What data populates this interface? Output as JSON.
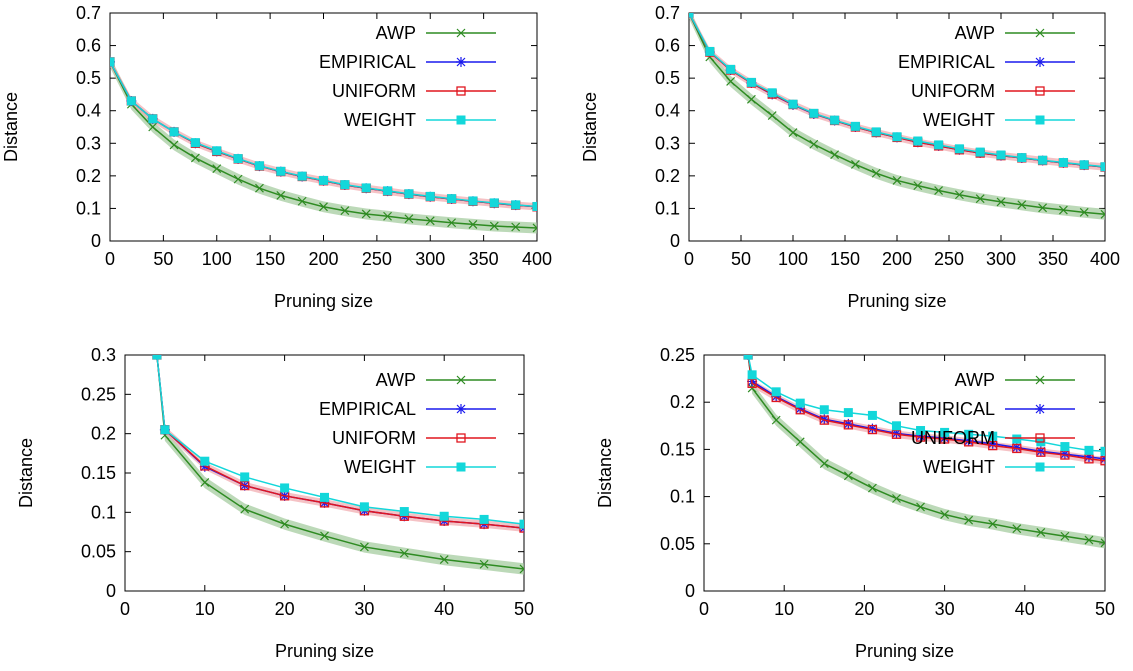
{
  "colors": {
    "AWP": "#2e8b22",
    "AWP_band": "#9fc99a",
    "EMPIRICAL": "#1a1aee",
    "UNIFORM": "#e0161f",
    "UNIFORM_band": "#f1a8ad",
    "WEIGHT": "#13d7da"
  },
  "chart_data": [
    {
      "type": "line",
      "xlabel": "Pruning size",
      "ylabel": "Distance",
      "xlim": [
        0,
        400
      ],
      "ylim": [
        0,
        0.7
      ],
      "xticks": [
        "0",
        "50",
        "100",
        "150",
        "200",
        "250",
        "300",
        "350",
        "400"
      ],
      "yticks": [
        "0",
        "0.1",
        "0.2",
        "0.3",
        "0.4",
        "0.5",
        "0.6",
        "0.7"
      ],
      "legend_position": "top-right",
      "x": [
        0,
        20,
        40,
        60,
        80,
        100,
        120,
        140,
        160,
        180,
        200,
        220,
        240,
        260,
        280,
        300,
        320,
        340,
        360,
        380,
        400
      ],
      "series": [
        {
          "name": "AWP",
          "marker": "x",
          "values": [
            0.55,
            0.42,
            0.35,
            0.295,
            0.255,
            0.222,
            0.19,
            0.162,
            0.14,
            0.122,
            0.105,
            0.093,
            0.083,
            0.076,
            0.068,
            0.062,
            0.056,
            0.051,
            0.046,
            0.043,
            0.04
          ]
        },
        {
          "name": "EMPIRICAL",
          "marker": "star",
          "values": [
            0.55,
            0.43,
            0.375,
            0.335,
            0.3,
            0.275,
            0.252,
            0.23,
            0.213,
            0.198,
            0.185,
            0.172,
            0.162,
            0.153,
            0.144,
            0.136,
            0.129,
            0.122,
            0.116,
            0.11,
            0.105
          ]
        },
        {
          "name": "UNIFORM",
          "marker": "open-square",
          "values": [
            0.55,
            0.43,
            0.375,
            0.335,
            0.3,
            0.275,
            0.252,
            0.23,
            0.213,
            0.198,
            0.185,
            0.172,
            0.162,
            0.153,
            0.144,
            0.136,
            0.129,
            0.122,
            0.116,
            0.11,
            0.105
          ]
        },
        {
          "name": "WEIGHT",
          "marker": "filled-square",
          "values": [
            0.55,
            0.43,
            0.375,
            0.335,
            0.302,
            0.277,
            0.253,
            0.231,
            0.214,
            0.199,
            0.186,
            0.173,
            0.163,
            0.154,
            0.145,
            0.137,
            0.13,
            0.123,
            0.117,
            0.111,
            0.106
          ]
        }
      ]
    },
    {
      "type": "line",
      "xlabel": "Pruning size",
      "ylabel": "Distance",
      "xlim": [
        0,
        400
      ],
      "ylim": [
        0,
        0.7
      ],
      "xticks": [
        "0",
        "50",
        "100",
        "150",
        "200",
        "250",
        "300",
        "350",
        "400"
      ],
      "yticks": [
        "0",
        "0.1",
        "0.2",
        "0.3",
        "0.4",
        "0.5",
        "0.6",
        "0.7"
      ],
      "legend_position": "top-right",
      "x": [
        0,
        20,
        40,
        60,
        80,
        100,
        120,
        140,
        160,
        180,
        200,
        220,
        240,
        260,
        280,
        300,
        320,
        340,
        360,
        380,
        400
      ],
      "series": [
        {
          "name": "AWP",
          "marker": "x",
          "values": [
            0.7,
            0.565,
            0.49,
            0.435,
            0.385,
            0.333,
            0.297,
            0.265,
            0.235,
            0.208,
            0.186,
            0.17,
            0.155,
            0.142,
            0.13,
            0.12,
            0.111,
            0.102,
            0.095,
            0.088,
            0.082
          ]
        },
        {
          "name": "EMPIRICAL",
          "marker": "star",
          "values": [
            0.7,
            0.58,
            0.525,
            0.485,
            0.45,
            0.418,
            0.39,
            0.37,
            0.35,
            0.333,
            0.318,
            0.303,
            0.292,
            0.28,
            0.27,
            0.262,
            0.255,
            0.247,
            0.24,
            0.233,
            0.227
          ]
        },
        {
          "name": "UNIFORM",
          "marker": "open-square",
          "values": [
            0.7,
            0.58,
            0.525,
            0.485,
            0.451,
            0.419,
            0.391,
            0.37,
            0.35,
            0.333,
            0.318,
            0.303,
            0.292,
            0.28,
            0.27,
            0.262,
            0.255,
            0.247,
            0.24,
            0.233,
            0.227
          ]
        },
        {
          "name": "WEIGHT",
          "marker": "filled-square",
          "values": [
            0.7,
            0.582,
            0.527,
            0.487,
            0.455,
            0.42,
            0.392,
            0.371,
            0.352,
            0.335,
            0.32,
            0.307,
            0.295,
            0.283,
            0.273,
            0.264,
            0.256,
            0.248,
            0.241,
            0.234,
            0.228
          ]
        }
      ]
    },
    {
      "type": "line",
      "xlabel": "Pruning size",
      "ylabel": "Distance",
      "xlim": [
        0,
        50
      ],
      "ylim": [
        0,
        0.3
      ],
      "xticks": [
        "0",
        "10",
        "20",
        "30",
        "40",
        "50"
      ],
      "yticks": [
        "0",
        "0.05",
        "0.1",
        "0.15",
        "0.2",
        "0.25",
        "0.3"
      ],
      "legend_position": "top-right",
      "x": [
        4,
        5,
        10,
        15,
        20,
        25,
        30,
        35,
        40,
        45,
        50
      ],
      "series": [
        {
          "name": "AWP",
          "marker": "x",
          "values": [
            0.3,
            0.198,
            0.138,
            0.104,
            0.085,
            0.07,
            0.056,
            0.048,
            0.04,
            0.034,
            0.028
          ]
        },
        {
          "name": "EMPIRICAL",
          "marker": "star",
          "values": [
            0.3,
            0.205,
            0.158,
            0.134,
            0.121,
            0.112,
            0.102,
            0.095,
            0.089,
            0.085,
            0.08
          ]
        },
        {
          "name": "UNIFORM",
          "marker": "open-square",
          "values": [
            0.3,
            0.205,
            0.159,
            0.134,
            0.121,
            0.112,
            0.102,
            0.095,
            0.089,
            0.085,
            0.08
          ]
        },
        {
          "name": "WEIGHT",
          "marker": "filled-square",
          "values": [
            0.3,
            0.205,
            0.165,
            0.145,
            0.131,
            0.119,
            0.107,
            0.101,
            0.095,
            0.091,
            0.085
          ]
        }
      ]
    },
    {
      "type": "line",
      "xlabel": "Pruning size",
      "ylabel": "Distance",
      "xlim": [
        0,
        50
      ],
      "ylim": [
        0,
        0.25
      ],
      "xticks": [
        "0",
        "10",
        "20",
        "30",
        "40",
        "50"
      ],
      "yticks": [
        "0",
        "0.05",
        "0.1",
        "0.15",
        "0.2",
        "0.25"
      ],
      "legend_position": "top-right",
      "x": [
        5.5,
        6,
        9,
        12,
        15,
        18,
        21,
        24,
        27,
        30,
        33,
        36,
        39,
        42,
        45,
        48,
        50
      ],
      "series": [
        {
          "name": "AWP",
          "marker": "x",
          "values": [
            0.25,
            0.215,
            0.181,
            0.158,
            0.135,
            0.122,
            0.109,
            0.098,
            0.089,
            0.081,
            0.075,
            0.071,
            0.066,
            0.062,
            0.058,
            0.054,
            0.051
          ]
        },
        {
          "name": "EMPIRICAL",
          "marker": "star",
          "values": [
            0.25,
            0.222,
            0.206,
            0.193,
            0.182,
            0.177,
            0.172,
            0.167,
            0.164,
            0.162,
            0.159,
            0.156,
            0.152,
            0.148,
            0.145,
            0.142,
            0.14
          ]
        },
        {
          "name": "UNIFORM",
          "marker": "open-square",
          "values": [
            0.25,
            0.22,
            0.205,
            0.192,
            0.181,
            0.176,
            0.171,
            0.166,
            0.163,
            0.161,
            0.158,
            0.154,
            0.151,
            0.147,
            0.144,
            0.14,
            0.138
          ]
        },
        {
          "name": "WEIGHT",
          "marker": "filled-square",
          "values": [
            0.25,
            0.229,
            0.211,
            0.199,
            0.192,
            0.189,
            0.186,
            0.175,
            0.17,
            0.168,
            0.166,
            0.164,
            0.161,
            0.158,
            0.153,
            0.149,
            0.148
          ]
        }
      ]
    }
  ]
}
